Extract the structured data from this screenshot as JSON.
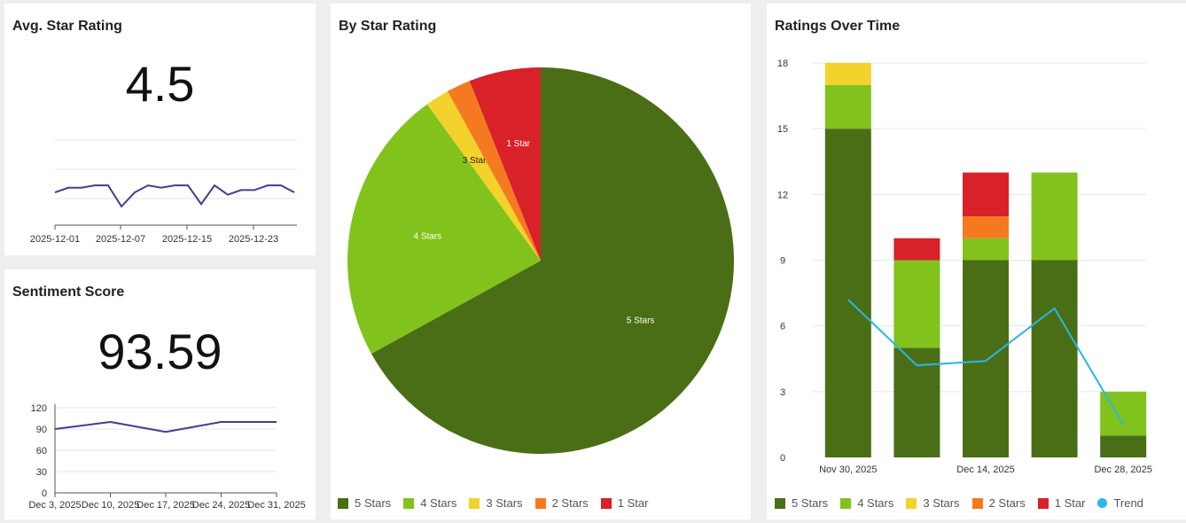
{
  "cards": {
    "avg": {
      "title": "Avg. Star Rating",
      "value": "4.5"
    },
    "sentiment": {
      "title": "Sentiment Score",
      "value": "93.59"
    },
    "pie": {
      "title": "By Star Rating"
    },
    "time": {
      "title": "Ratings Over Time"
    }
  },
  "colors": {
    "five": "#4a6e15",
    "four": "#82c21c",
    "three": "#f3d22c",
    "two": "#f57a1f",
    "one": "#d82128",
    "trend": "#29b6e8",
    "spark": "#4b3a8c"
  },
  "chart_data": [
    {
      "id": "avg_spark",
      "type": "line",
      "x_ticks": [
        "2025-12-01",
        "2025-12-07",
        "2025-12-15",
        "2025-12-23"
      ],
      "values": [
        4.4,
        4.6,
        4.6,
        4.7,
        4.7,
        3.8,
        4.4,
        4.7,
        4.6,
        4.7,
        4.7,
        3.9,
        4.7,
        4.3,
        4.5,
        4.5,
        4.7,
        4.7,
        4.4
      ],
      "ylim": [
        3.0,
        5.5
      ]
    },
    {
      "id": "sentiment_spark",
      "type": "line",
      "x_ticks": [
        "Dec 3, 2025",
        "Dec 10, 2025",
        "Dec 17, 2025",
        "Dec 24, 2025",
        "Dec 31, 2025"
      ],
      "y_ticks": [
        "0",
        "30",
        "60",
        "90",
        "120"
      ],
      "values": [
        90,
        100,
        86,
        100,
        100
      ],
      "ylim": [
        0,
        120
      ]
    },
    {
      "id": "by_star_rating",
      "type": "pie",
      "labels": [
        "5 Stars",
        "4 Stars",
        "3 Stars",
        "2 Stars",
        "1 Star"
      ],
      "values": [
        67,
        23,
        2,
        2,
        6
      ],
      "slice_labels": [
        "5 Stars",
        "4 Stars",
        "3 Stars",
        "",
        "1 Star"
      ],
      "legend": [
        "5 Stars",
        "4 Stars",
        "3 Stars",
        "2 Stars",
        "1 Star"
      ]
    },
    {
      "id": "ratings_over_time",
      "type": "bar",
      "stacked": true,
      "categories": [
        "Nov 30, 2025",
        "",
        "Dec 14, 2025",
        "",
        "Dec 28, 2025"
      ],
      "series": [
        {
          "name": "5 Stars",
          "values": [
            15,
            5,
            9,
            9,
            1
          ]
        },
        {
          "name": "4 Stars",
          "values": [
            2,
            4,
            1,
            4,
            2
          ]
        },
        {
          "name": "3 Stars",
          "values": [
            1,
            0,
            0,
            0,
            0
          ]
        },
        {
          "name": "2 Stars",
          "values": [
            0,
            0,
            1,
            0,
            0
          ]
        },
        {
          "name": "1 Star",
          "values": [
            0,
            1,
            2,
            0,
            0
          ]
        }
      ],
      "trend": {
        "name": "Trend",
        "values": [
          7.2,
          4.2,
          4.4,
          6.8,
          1.5
        ]
      },
      "y_ticks": [
        "0",
        "3",
        "6",
        "9",
        "12",
        "15",
        "18"
      ],
      "ylim": [
        0,
        18
      ],
      "legend": [
        "5 Stars",
        "4 Stars",
        "3 Stars",
        "2 Stars",
        "1 Star",
        "Trend"
      ]
    }
  ]
}
